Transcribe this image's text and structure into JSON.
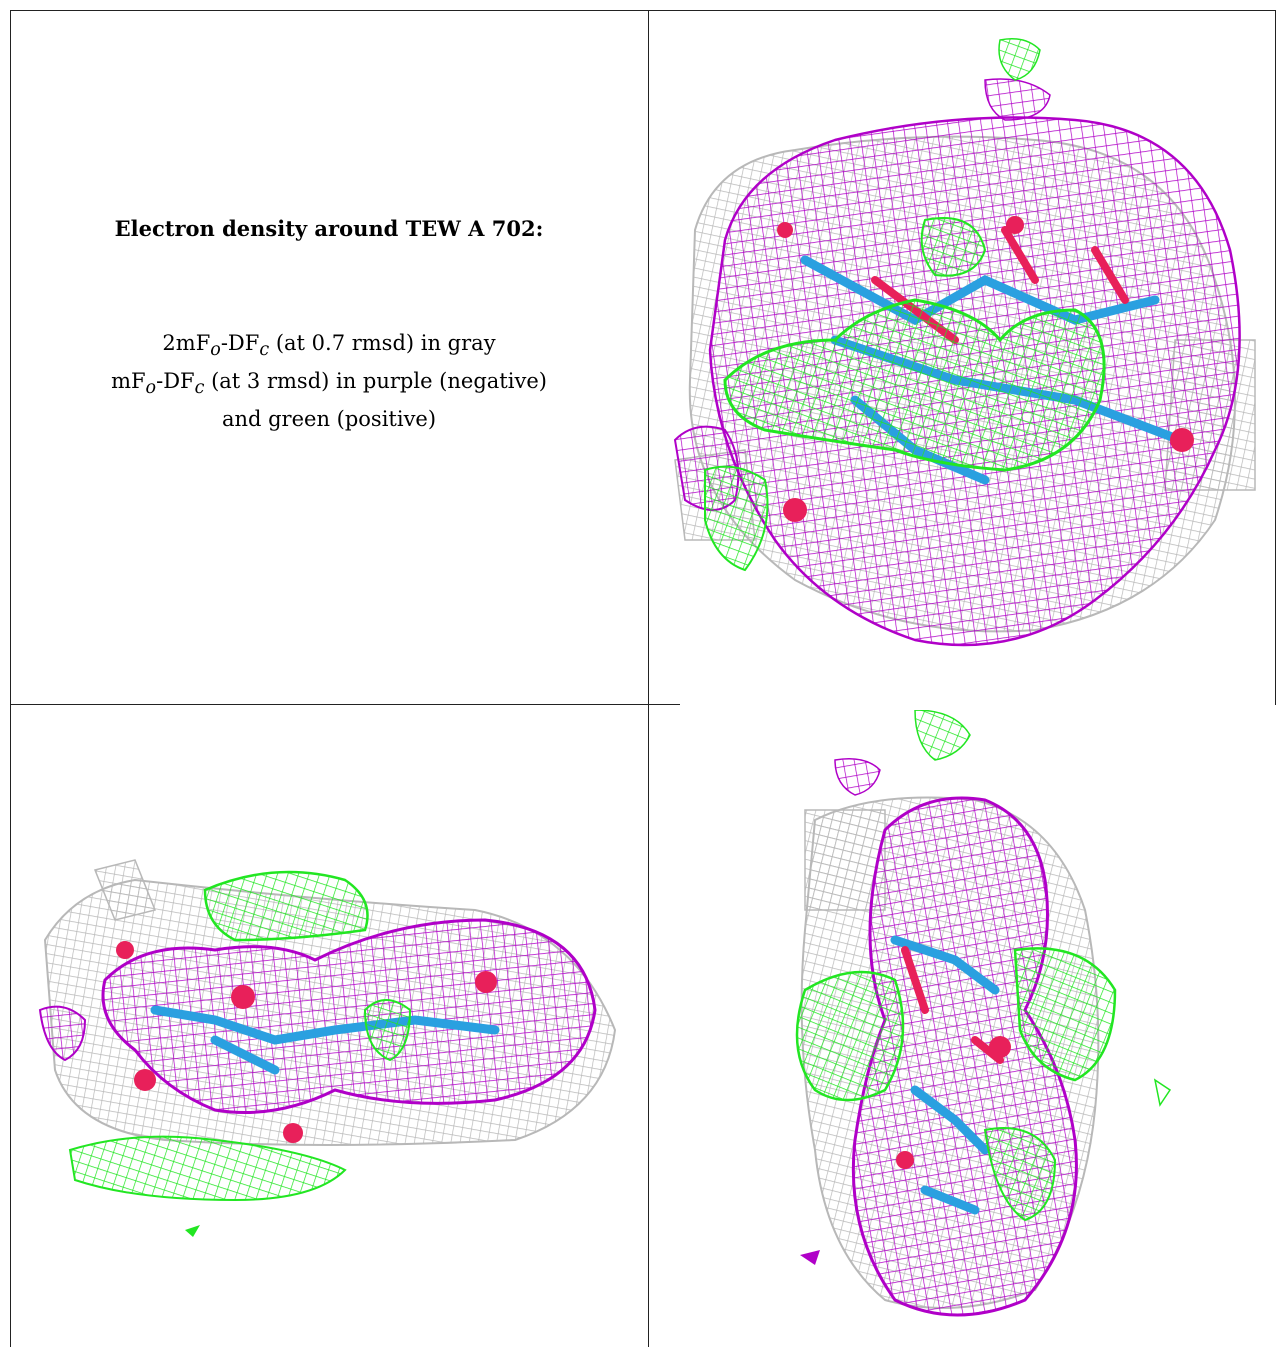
{
  "caption": {
    "title": "Electron density around TEW A 702:",
    "line1_prefix": "2mF",
    "line1_mid": "-DF",
    "line1_suffix": " (at 0.7 rmsd) in gray",
    "line2_prefix": "mF",
    "line2_mid": "-DF",
    "line2_suffix": " (at 3 rmsd) in purple (negative)",
    "line3": "and green (positive)",
    "sub_o": "o",
    "sub_c": "c"
  },
  "panels": [
    {
      "name": "density-view-top-right"
    },
    {
      "name": "density-view-bottom-left"
    },
    {
      "name": "density-view-bottom-right"
    }
  ],
  "colors": {
    "gray_mesh": "#b8b8b8",
    "purple_mesh": "#b000c8",
    "green_mesh": "#22e622",
    "atom_red": "#e8205a",
    "atom_blue": "#2aa0e0",
    "border": "#222222"
  }
}
